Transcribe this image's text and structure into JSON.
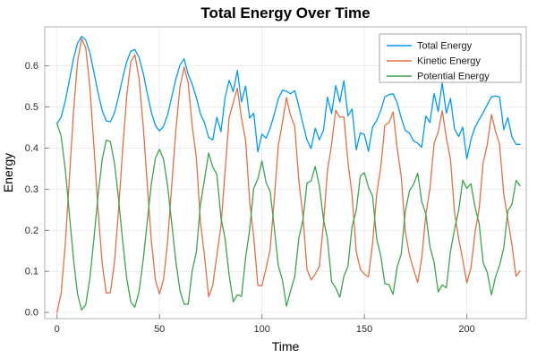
{
  "background_color": "#ffffff",
  "chart_data": {
    "type": "line",
    "title": "Total Energy Over Time",
    "xlabel": "Time",
    "ylabel": "Energy",
    "grid": true,
    "legend_position": "top-right",
    "xlim": [
      -6,
      229
    ],
    "ylim": [
      -0.015,
      0.695
    ],
    "x_ticks": [
      0,
      50,
      100,
      150,
      200
    ],
    "y_ticks": [
      0.0,
      0.1,
      0.2,
      0.3,
      0.4,
      0.5,
      0.6
    ],
    "grid_color": "rgba(0,0,0,0.09)",
    "frame_color": "rgba(0,0,0,0.3)",
    "tick_color": "rgba(0,0,0,0.45)",
    "x": [
      0,
      2,
      4,
      6,
      8,
      10,
      12,
      14,
      16,
      18,
      20,
      22,
      24,
      26,
      28,
      30,
      32,
      34,
      36,
      38,
      40,
      42,
      44,
      46,
      48,
      50,
      52,
      54,
      56,
      58,
      60,
      62,
      64,
      66,
      68,
      70,
      72,
      74,
      76,
      78,
      80,
      82,
      84,
      86,
      88,
      90,
      92,
      94,
      96,
      98,
      100,
      102,
      104,
      106,
      108,
      110,
      112,
      114,
      116,
      118,
      120,
      122,
      124,
      126,
      128,
      130,
      132,
      134,
      136,
      138,
      140,
      142,
      144,
      146,
      148,
      150,
      152,
      154,
      156,
      158,
      160,
      162,
      164,
      166,
      168,
      170,
      172,
      174,
      176,
      178,
      180,
      182,
      184,
      186,
      188,
      190,
      192,
      194,
      196,
      198,
      200,
      202,
      204,
      206,
      208,
      210,
      212,
      214,
      216,
      218,
      220,
      222,
      224,
      226
    ],
    "series": [
      {
        "name": "Total Energy",
        "color": "#009af9",
        "values": [
          0.46,
          0.475,
          0.514,
          0.565,
          0.617,
          0.655,
          0.672,
          0.663,
          0.632,
          0.585,
          0.535,
          0.492,
          0.466,
          0.464,
          0.485,
          0.525,
          0.57,
          0.61,
          0.636,
          0.64,
          0.621,
          0.583,
          0.534,
          0.488,
          0.455,
          0.442,
          0.453,
          0.482,
          0.525,
          0.568,
          0.602,
          0.617,
          0.579,
          0.555,
          0.523,
          0.483,
          0.461,
          0.426,
          0.42,
          0.475,
          0.44,
          0.523,
          0.565,
          0.537,
          0.589,
          0.512,
          0.551,
          0.473,
          0.485,
          0.391,
          0.434,
          0.424,
          0.448,
          0.482,
          0.52,
          0.541,
          0.538,
          0.532,
          0.54,
          0.502,
          0.459,
          0.42,
          0.399,
          0.448,
          0.42,
          0.443,
          0.524,
          0.484,
          0.552,
          0.512,
          0.564,
          0.478,
          0.495,
          0.396,
          0.437,
          0.433,
          0.392,
          0.451,
          0.467,
          0.492,
          0.525,
          0.53,
          0.532,
          0.51,
          0.473,
          0.443,
          0.436,
          0.417,
          0.412,
          0.402,
          0.478,
          0.462,
          0.533,
          0.489,
          0.558,
          0.485,
          0.521,
          0.446,
          0.428,
          0.451,
          0.374,
          0.421,
          0.451,
          0.469,
          0.486,
          0.506,
          0.525,
          0.527,
          0.524,
          0.445,
          0.474,
          0.427,
          0.409,
          0.409
        ]
      },
      {
        "name": "Kinetic Energy",
        "color": "#e36f47",
        "values": [
          0.0,
          0.046,
          0.165,
          0.325,
          0.487,
          0.61,
          0.666,
          0.644,
          0.549,
          0.406,
          0.251,
          0.121,
          0.047,
          0.048,
          0.12,
          0.247,
          0.395,
          0.527,
          0.611,
          0.627,
          0.571,
          0.457,
          0.314,
          0.177,
          0.08,
          0.045,
          0.081,
          0.176,
          0.309,
          0.444,
          0.549,
          0.597,
          0.559,
          0.453,
          0.376,
          0.219,
          0.136,
          0.038,
          0.066,
          0.139,
          0.21,
          0.343,
          0.474,
          0.511,
          0.546,
          0.473,
          0.419,
          0.272,
          0.183,
          0.066,
          0.065,
          0.108,
          0.153,
          0.274,
          0.407,
          0.462,
          0.523,
          0.479,
          0.453,
          0.321,
          0.234,
          0.105,
          0.079,
          0.093,
          0.112,
          0.216,
          0.345,
          0.409,
          0.492,
          0.475,
          0.476,
          0.365,
          0.285,
          0.149,
          0.105,
          0.093,
          0.087,
          0.168,
          0.288,
          0.355,
          0.455,
          0.462,
          0.488,
          0.399,
          0.331,
          0.196,
          0.14,
          0.105,
          0.073,
          0.132,
          0.238,
          0.302,
          0.411,
          0.439,
          0.491,
          0.425,
          0.373,
          0.243,
          0.179,
          0.129,
          0.072,
          0.108,
          0.195,
          0.252,
          0.365,
          0.409,
          0.482,
          0.44,
          0.409,
          0.289,
          0.227,
          0.164,
          0.088,
          0.101
        ]
      },
      {
        "name": "Potential Energy",
        "color": "#3da44d",
        "values": [
          0.46,
          0.429,
          0.349,
          0.24,
          0.13,
          0.045,
          0.006,
          0.019,
          0.083,
          0.179,
          0.284,
          0.371,
          0.419,
          0.416,
          0.365,
          0.278,
          0.175,
          0.083,
          0.025,
          0.013,
          0.05,
          0.126,
          0.22,
          0.311,
          0.375,
          0.397,
          0.372,
          0.306,
          0.216,
          0.124,
          0.053,
          0.02,
          0.02,
          0.102,
          0.147,
          0.264,
          0.325,
          0.388,
          0.354,
          0.336,
          0.23,
          0.18,
          0.091,
          0.026,
          0.043,
          0.039,
          0.132,
          0.201,
          0.302,
          0.325,
          0.369,
          0.316,
          0.295,
          0.208,
          0.113,
          0.079,
          0.015,
          0.053,
          0.087,
          0.181,
          0.225,
          0.315,
          0.32,
          0.355,
          0.308,
          0.227,
          0.179,
          0.075,
          0.06,
          0.037,
          0.088,
          0.113,
          0.21,
          0.247,
          0.332,
          0.34,
          0.305,
          0.283,
          0.179,
          0.137,
          0.07,
          0.068,
          0.044,
          0.111,
          0.142,
          0.247,
          0.296,
          0.312,
          0.339,
          0.27,
          0.24,
          0.16,
          0.122,
          0.05,
          0.067,
          0.06,
          0.148,
          0.203,
          0.249,
          0.322,
          0.302,
          0.313,
          0.256,
          0.217,
          0.121,
          0.097,
          0.043,
          0.087,
          0.115,
          0.156,
          0.247,
          0.263,
          0.321,
          0.308
        ]
      }
    ]
  }
}
